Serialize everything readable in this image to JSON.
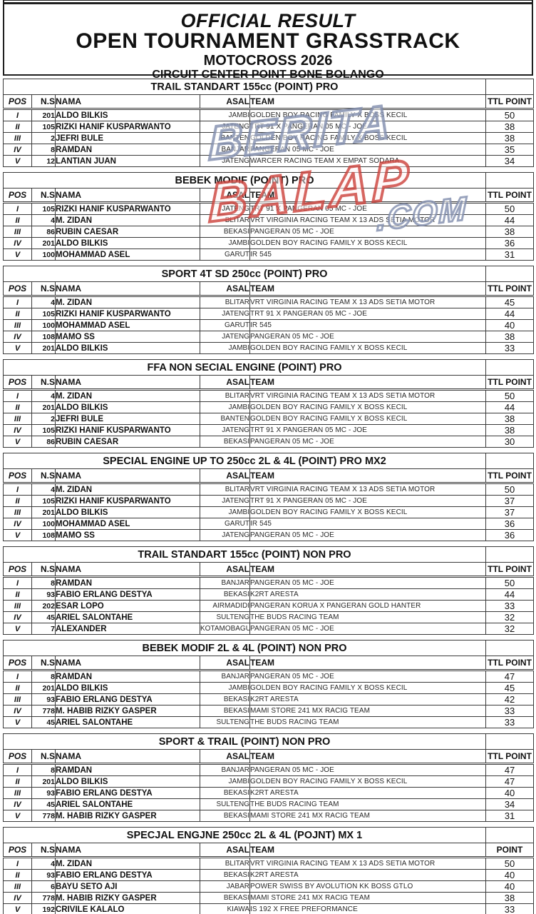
{
  "header": {
    "line1": "OFFICIAL RESULT",
    "line2": "OPEN TOURNAMENT GRASSTRACK",
    "line3": "MOTOCROSS 2026",
    "line4": "CIRCUIT CENTER POINT BONE BOLANGO"
  },
  "watermark": {
    "line1": "BERITA",
    "line2": "BALAP",
    "line3": ".COM",
    "blue": "#808cac",
    "red": "#cc403a"
  },
  "columns": {
    "pos": "POS",
    "ns": "N.S",
    "nama": "NAMA",
    "asal": "ASAL",
    "team": "TEAM"
  },
  "tables": [
    {
      "title": "TRAIL STANDART 155cc (POINT) PRO",
      "point_label": "TTL POINT",
      "rows": [
        {
          "pos": "I",
          "ns": "201",
          "nama": "ALDO BILKIS",
          "asal": "JAMBI",
          "team": "GOLDEN BOY RACING FAMILY X BOSS KECIL",
          "point": "50"
        },
        {
          "pos": "II",
          "ns": "105",
          "nama": "RIZKI HANIF KUSPARWANTO",
          "asal": "JATENG",
          "team": "TRT 91 X PANGERAN 05 MC - JOE",
          "point": "38"
        },
        {
          "pos": "III",
          "ns": "2",
          "nama": "JEFRI BULE",
          "asal": "BANTEN",
          "team": "GOLDEN BOY RACING FAMILY X BOSS KECIL",
          "point": "38"
        },
        {
          "pos": "IV",
          "ns": "8",
          "nama": "RAMDAN",
          "asal": "BANJAR",
          "team": "PANGERAN 05 MC - JOE",
          "point": "35"
        },
        {
          "pos": "V",
          "ns": "12",
          "nama": "LANTIAN JUAN",
          "asal": "JATENG",
          "team": "WARCER RACING TEAM X EMPAT SODARA",
          "point": "34"
        }
      ]
    },
    {
      "title": "BEBEK MODIF (POINT) PRO",
      "point_label": "TTL POINT",
      "rows": [
        {
          "pos": "I",
          "ns": "105",
          "nama": "RIZKI HANIF KUSPARWANTO",
          "asal": "JATENG",
          "team": "TRT 91 X PANGERAN 05 MC - JOE",
          "point": "50"
        },
        {
          "pos": "II",
          "ns": "4",
          "nama": "M. ZIDAN",
          "asal": "BLITAR",
          "team": "VRT VIRGINIA RACING TEAM X 13 ADS SETIA MOTOR",
          "point": "44"
        },
        {
          "pos": "III",
          "ns": "86",
          "nama": "RUBIN CAESAR",
          "asal": "BEKASI",
          "team": "PANGERAN 05 MC - JOE",
          "point": "38"
        },
        {
          "pos": "IV",
          "ns": "201",
          "nama": "ALDO BILKIS",
          "asal": "JAMBI",
          "team": "GOLDEN BOY RACING FAMILY X BOSS KECIL",
          "point": "36"
        },
        {
          "pos": "V",
          "ns": "100",
          "nama": "MOHAMMAD ASEL",
          "asal": "GARUT",
          "team": "IR 545",
          "point": "31"
        }
      ]
    },
    {
      "title": "SPORT 4T SD 250cc (POINT) PRO",
      "point_label": "TTL POINT",
      "rows": [
        {
          "pos": "I",
          "ns": "4",
          "nama": "M. ZIDAN",
          "asal": "BLITAR",
          "team": "VRT VIRGINIA RACING TEAM X 13 ADS SETIA MOTOR",
          "point": "45"
        },
        {
          "pos": "II",
          "ns": "105",
          "nama": "RIZKI HANIF KUSPARWANTO",
          "asal": "JATENG",
          "team": "TRT 91 X PANGERAN 05 MC - JOE",
          "point": "44"
        },
        {
          "pos": "III",
          "ns": "100",
          "nama": "MOHAMMAD ASEL",
          "asal": "GARUT",
          "team": "IR 545",
          "point": "40"
        },
        {
          "pos": "IV",
          "ns": "108",
          "nama": "MAMO SS",
          "asal": "JATENG",
          "team": "PANGERAN 05 MC - JOE",
          "point": "38"
        },
        {
          "pos": "V",
          "ns": "201",
          "nama": "ALDO BILKIS",
          "asal": "JAMBI",
          "team": "GOLDEN BOY RACING FAMILY X BOSS KECIL",
          "point": "33"
        }
      ]
    },
    {
      "title": "FFA NON SECIAL ENGINE (POINT) PRO",
      "point_label": "TTL POINT",
      "rows": [
        {
          "pos": "I",
          "ns": "4",
          "nama": "M. ZIDAN",
          "asal": "BLITAR",
          "team": "VRT VIRGINIA RACING TEAM X 13 ADS SETIA MOTOR",
          "point": "50"
        },
        {
          "pos": "II",
          "ns": "201",
          "nama": "ALDO BILKIS",
          "asal": "JAMBI",
          "team": "GOLDEN BOY RACING FAMILY X BOSS KECIL",
          "point": "44"
        },
        {
          "pos": "III",
          "ns": "2",
          "nama": "JEFRI BULE",
          "asal": "BANTEN",
          "team": "GOLDEN BOY RACING FAMILY X BOSS KECIL",
          "point": "38"
        },
        {
          "pos": "IV",
          "ns": "105",
          "nama": "RIZKI HANIF KUSPARWANTO",
          "asal": "JATENG",
          "team": "TRT 91 X PANGERAN 05 MC - JOE",
          "point": "38"
        },
        {
          "pos": "V",
          "ns": "86",
          "nama": "RUBIN CAESAR",
          "asal": "BEKASI",
          "team": "PANGERAN 05 MC - JOE",
          "point": "30"
        }
      ]
    },
    {
      "title": "SPECIAL ENGINE UP TO 250cc 2L & 4L (POINT) PRO MX2",
      "point_label": "TTL POINT",
      "rows": [
        {
          "pos": "I",
          "ns": "4",
          "nama": "M. ZIDAN",
          "asal": "BLITAR",
          "team": "VRT VIRGINIA RACING TEAM X 13 ADS SETIA MOTOR",
          "point": "50"
        },
        {
          "pos": "II",
          "ns": "105",
          "nama": "RIZKI HANIF KUSPARWANTO",
          "asal": "JATENG",
          "team": "TRT 91 X PANGERAN 05 MC - JOE",
          "point": "37"
        },
        {
          "pos": "III",
          "ns": "201",
          "nama": "ALDO BILKIS",
          "asal": "JAMBI",
          "team": "GOLDEN BOY RACING FAMILY X BOSS KECIL",
          "point": "37"
        },
        {
          "pos": "IV",
          "ns": "100",
          "nama": "MOHAMMAD ASEL",
          "asal": "GARUT",
          "team": "IR 545",
          "point": "36"
        },
        {
          "pos": "V",
          "ns": "108",
          "nama": "MAMO SS",
          "asal": "JATENG",
          "team": "PANGERAN 05 MC - JOE",
          "point": "36"
        }
      ]
    },
    {
      "title": "TRAIL STANDART 155cc (POINT) NON PRO",
      "point_label": "TTL POINT",
      "rows": [
        {
          "pos": "I",
          "ns": "8",
          "nama": "RAMDAN",
          "asal": "BANJAR",
          "team": "PANGERAN 05 MC - JOE",
          "point": "50"
        },
        {
          "pos": "II",
          "ns": "93",
          "nama": "FABIO ERLANG DESTYA",
          "asal": "BEKASI",
          "team": "K2RT ARESTA",
          "point": "44"
        },
        {
          "pos": "III",
          "ns": "202",
          "nama": "ESAR LOPO",
          "asal": "AIRMADIDI",
          "team": "PANGERAN KORUA X PANGERAN GOLD HANTER",
          "point": "33"
        },
        {
          "pos": "IV",
          "ns": "45",
          "nama": "ARIEL SALONTAHE",
          "asal": "SULTENG",
          "team": "THE BUDS RACING TEAM",
          "point": "32"
        },
        {
          "pos": "V",
          "ns": "7",
          "nama": "ALEXANDER",
          "asal": "KOTAMOBAGU",
          "team": "PANGERAN 05 MC - JOE",
          "point": "32"
        }
      ]
    },
    {
      "title": "BEBEK MODIF 2L & 4L (POINT) NON PRO",
      "point_label": "TTL POINT",
      "rows": [
        {
          "pos": "I",
          "ns": "8",
          "nama": "RAMDAN",
          "asal": "BANJAR",
          "team": "PANGERAN 05 MC - JOE",
          "point": "47"
        },
        {
          "pos": "II",
          "ns": "201",
          "nama": "ALDO BILKIS",
          "asal": "JAMBI",
          "team": "GOLDEN BOY RACING FAMILY X BOSS KECIL",
          "point": "45"
        },
        {
          "pos": "III",
          "ns": "93",
          "nama": "FABIO ERLANG DESTYA",
          "asal": "BEKASI",
          "team": "K2RT ARESTA",
          "point": "42"
        },
        {
          "pos": "IV",
          "ns": "778",
          "nama": "M. HABIB RIZKY GASPER",
          "asal": "BEKASI",
          "team": "MAMI STORE 241 MX RACIG TEAM",
          "point": "33"
        },
        {
          "pos": "V",
          "ns": "45",
          "nama": "ARIEL SALONTAHE",
          "asal": "SULTENG",
          "team": "THE BUDS RACING TEAM",
          "point": "33"
        }
      ]
    },
    {
      "title": "SPORT & TRAIL (POINT) NON PRO",
      "point_label": "TTL POINT",
      "rows": [
        {
          "pos": "I",
          "ns": "8",
          "nama": "RAMDAN",
          "asal": "BANJAR",
          "team": "PANGERAN 05 MC - JOE",
          "point": "47"
        },
        {
          "pos": "II",
          "ns": "201",
          "nama": "ALDO BILKIS",
          "asal": "JAMBI",
          "team": "GOLDEN BOY RACING FAMILY X BOSS KECIL",
          "point": "47"
        },
        {
          "pos": "III",
          "ns": "93",
          "nama": "FABIO ERLANG DESTYA",
          "asal": "BEKASI",
          "team": "K2RT ARESTA",
          "point": "40"
        },
        {
          "pos": "IV",
          "ns": "45",
          "nama": "ARIEL SALONTAHE",
          "asal": "SULTENG",
          "team": "THE BUDS RACING TEAM",
          "point": "34"
        },
        {
          "pos": "V",
          "ns": "778",
          "nama": "M. HABIB RIZKY GASPER",
          "asal": "BEKASI",
          "team": "MAMI STORE 241 MX RACIG TEAM",
          "point": "31"
        }
      ]
    },
    {
      "title": "SPECJAL ENGJNE 250cc 2L & 4L (POJNT) MX 1",
      "point_label": "POINT",
      "rows": [
        {
          "pos": "I",
          "ns": "4",
          "nama": "M. ZIDAN",
          "asal": "BLITAR",
          "team": "VRT VIRGINIA RACING TEAM X 13 ADS SETIA MOTOR",
          "point": "50"
        },
        {
          "pos": "II",
          "ns": "93",
          "nama": "FABIO ERLANG DESTYA",
          "asal": "BEKASI",
          "team": "K2RT ARESTA",
          "point": "40"
        },
        {
          "pos": "III",
          "ns": "6",
          "nama": "BAYU SETO AJI",
          "asal": "JABAR",
          "team": "POWER SWISS BY AVOLUTION KK BOSS GTLO",
          "point": "40"
        },
        {
          "pos": "IV",
          "ns": "778",
          "nama": "M. HABIB RIZKY GASPER",
          "asal": "BEKASI",
          "team": "MAMI STORE 241 MX RACIG TEAM",
          "point": "38"
        },
        {
          "pos": "V",
          "ns": "192",
          "nama": "CRIVILE KALALO",
          "asal": "KIAWA",
          "team": "IS 192 X FREE PREFORMANCE",
          "point": "33"
        }
      ]
    }
  ]
}
